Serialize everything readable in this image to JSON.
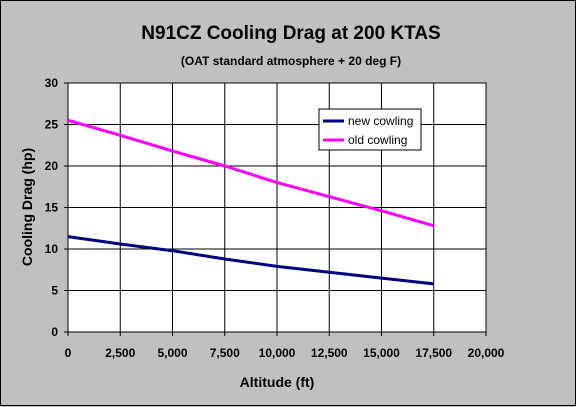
{
  "colors": {
    "background": "#c0c0c0",
    "plot_background": "#ffffff",
    "grid": "#000000",
    "new_cowling": "#000080",
    "old_cowling": "#ff00ff"
  },
  "chart_data": {
    "type": "line",
    "title": "N91CZ Cooling Drag at 200 KTAS",
    "subtitle": "(OAT standard atmosphere + 20 deg F)",
    "xlabel": "Altitude (ft)",
    "ylabel": "Cooling Drag (hp)",
    "xlim": [
      0,
      20000
    ],
    "ylim": [
      0,
      30
    ],
    "x_ticks": [
      0,
      2500,
      5000,
      7500,
      10000,
      12500,
      15000,
      17500,
      20000
    ],
    "x_tick_labels": [
      "0",
      "2,500",
      "5,000",
      "7,500",
      "10,000",
      "12,500",
      "15,000",
      "17,500",
      "20,000"
    ],
    "y_ticks": [
      0,
      5,
      10,
      15,
      20,
      25,
      30
    ],
    "y_tick_labels": [
      "0",
      "5",
      "10",
      "15",
      "20",
      "25",
      "30"
    ],
    "grid": true,
    "legend_position": "top-right",
    "series": [
      {
        "name": "new cowling",
        "color": "#000080",
        "x": [
          0,
          2500,
          5000,
          7500,
          10000,
          12500,
          15000,
          17500
        ],
        "y": [
          11.5,
          10.6,
          9.8,
          8.8,
          7.9,
          7.2,
          6.5,
          5.8
        ]
      },
      {
        "name": "old cowling",
        "color": "#ff00ff",
        "x": [
          0,
          2500,
          5000,
          7500,
          10000,
          12500,
          15000,
          17500
        ],
        "y": [
          25.5,
          23.7,
          21.8,
          20.0,
          18.0,
          16.3,
          14.6,
          12.8
        ]
      }
    ]
  }
}
